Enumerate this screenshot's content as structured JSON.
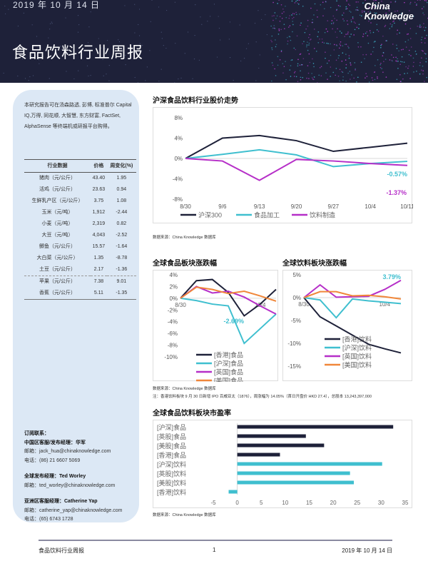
{
  "header": {
    "date": "2019 年 10 月 14 日",
    "title": "食品饮料行业周报",
    "logo_line1": "China",
    "logo_line2": "Knowledge"
  },
  "left": {
    "intro": "本研究报告可在汤森路透, 彭博, 标准普尔 Capital IQ,万得, 同花顺, 大智慧, 东方财富, FactSet, AlphaSense 等终端机或研报平台购得。",
    "table_headers": [
      "行业数据",
      "价格",
      "周变化(%)"
    ],
    "rows": [
      {
        "name": "猪肉（元/公斤）",
        "price": "43.40",
        "change": "1.95"
      },
      {
        "name": "活鸡（元/公斤）",
        "price": "23.63",
        "change": "0.94"
      },
      {
        "name": "生鲜乳产区（元/公斤）",
        "price": "3.75",
        "change": "1.08"
      },
      {
        "name": "玉米（元/吨）",
        "price": "1,912",
        "change": "-2.44"
      },
      {
        "name": "小麦（元/吨）",
        "price": "2,319",
        "change": "0.82"
      },
      {
        "name": "大豆（元/吨）",
        "price": "4,043",
        "change": "-2.52"
      },
      {
        "name": "鲫鱼（元/公斤）",
        "price": "15.57",
        "change": "-1.64"
      },
      {
        "name": "大白菜（元/公斤）",
        "price": "1.35",
        "change": "-8.78"
      },
      {
        "name": "土豆（元/公斤）",
        "price": "2.17",
        "change": "-1.36"
      },
      {
        "name": "苹果（元/公斤）",
        "price": "7.38",
        "change": "9.01"
      },
      {
        "name": "香蕉（元/公斤）",
        "price": "5.11",
        "change": "-1.35"
      }
    ],
    "contacts": {
      "heading": "订阅联系：",
      "china_mgr": "中国区客服/发布经理：华军",
      "china_email": "邮箱：jack_hua@chinaknowledge.com",
      "china_phone": "电话：(86) 21 6607 5069",
      "global_mgr": "全球发布经理：Ted Worley",
      "global_email": "邮箱：ted_worley@chinaknowledge.com",
      "asia_mgr": "亚洲区客服经理：Catherine Yap",
      "asia_email": "邮箱：catherine_yap@chinaknowledge.com",
      "asia_phone": "电话：(65) 6743 1728"
    }
  },
  "source": "数据来源：China Knowledge 数据库",
  "note": "注：香港饮料板块 9 月 30 日新增 IPO 百威亚太（1876），周涨幅为 14.05%（首日开盘价 HKD 27.4），总股本 13,243,397,000",
  "footer": {
    "left": "食品饮料行业周报",
    "page": "1",
    "right": "2019 年 10 月 14 日"
  },
  "chart_data": [
    {
      "type": "line",
      "title": "沪深食品饮料行业股价走势",
      "categories": [
        "8/30",
        "9/6",
        "9/13",
        "9/20",
        "9/27",
        "10/4",
        "10/11"
      ],
      "ylim": [
        -8,
        8
      ],
      "yticks": [
        "8%",
        "4%",
        "0%",
        "-4%",
        "-8%"
      ],
      "ytick_values": [
        8,
        4,
        0,
        -4,
        -8
      ],
      "series": [
        {
          "name": "沪深300",
          "color": "#1e2139",
          "values": [
            0,
            4.0,
            4.5,
            3.5,
            1.4,
            2.2,
            3.0
          ]
        },
        {
          "name": "食品加工",
          "color": "#3fbfcf",
          "values": [
            0,
            0.8,
            1.7,
            0.7,
            -1.6,
            -1.0,
            -0.57
          ]
        },
        {
          "name": "饮料制造",
          "color": "#b62fc8",
          "values": [
            0,
            -0.5,
            -4.3,
            -0.2,
            -0.5,
            -1.0,
            -1.37
          ]
        }
      ],
      "annotations": [
        "-0.57%",
        "-1.37%"
      ],
      "legend": "bottom"
    },
    {
      "type": "line",
      "title": "全球食品板块涨跌幅",
      "xlabels": [
        "8/30",
        "10/4"
      ],
      "ylim": [
        -10,
        4
      ],
      "yticks": [
        "4%",
        "2%",
        "0%",
        "-2%",
        "-4%",
        "-6%",
        "-8%",
        "-10%"
      ],
      "ytick_values": [
        4,
        2,
        0,
        -2,
        -4,
        -6,
        -8,
        -10
      ],
      "series": [
        {
          "name": "[香港]食品",
          "color": "#1e2139",
          "values": [
            0,
            3.0,
            3.2,
            1.0,
            -3.0,
            -1.0,
            1.5
          ]
        },
        {
          "name": "[沪深]食品",
          "color": "#3fbfcf",
          "values": [
            0,
            -0.4,
            -1.0,
            -1.3,
            -7.7,
            -5.2,
            -2.69
          ]
        },
        {
          "name": "[英国]食品",
          "color": "#b62fc8",
          "values": [
            0,
            2.0,
            0.9,
            1.2,
            0.2,
            -1.3,
            -2.7
          ]
        },
        {
          "name": "[美国]食品",
          "color": "#f0873a",
          "values": [
            0,
            1.9,
            1.5,
            0.8,
            1.2,
            0.4,
            -0.5
          ]
        }
      ],
      "annotations": [
        "-2.69%"
      ],
      "legend": "bottom-center"
    },
    {
      "type": "line",
      "title": "全球饮料板块涨跌幅",
      "xlabels": [
        "8/30",
        "10/4"
      ],
      "ylim": [
        -15,
        5
      ],
      "yticks": [
        "5%",
        "0%",
        "-5%",
        "-10%",
        "-15%"
      ],
      "ytick_values": [
        5,
        0,
        -5,
        -10,
        -15
      ],
      "series": [
        {
          "name": "[香港]饮料",
          "color": "#1e2139",
          "values": [
            0,
            -4.2,
            -6.2,
            -8.2,
            -10.2,
            -11.2,
            -12.1
          ]
        },
        {
          "name": "[沪深]饮料",
          "color": "#3fbfcf",
          "values": [
            0,
            -0.5,
            -4.4,
            -0.3,
            -0.7,
            -1.0,
            -1.3
          ]
        },
        {
          "name": "[英国]饮料",
          "color": "#b62fc8",
          "values": [
            0,
            2.8,
            0.1,
            0.2,
            0.3,
            1.8,
            3.79
          ]
        },
        {
          "name": "[美国]饮料",
          "color": "#f0873a",
          "values": [
            0,
            1.3,
            1.3,
            0.4,
            0.5,
            0.2,
            -0.3
          ]
        }
      ],
      "annotations": [
        "3.79%"
      ],
      "legend": "bottom-center"
    },
    {
      "type": "bar",
      "orientation": "horizontal",
      "title": "全球食品饮料板块市盈率",
      "categories": [
        "[沪深]食品",
        "[英股]食品",
        "[美股]食品",
        "[香港]食品",
        "[沪深]饮料",
        "[英股]饮料",
        "[美股]饮料",
        "[香港]饮料"
      ],
      "values": [
        32.5,
        14.3,
        18.1,
        8.9,
        30.2,
        23.5,
        24.3,
        -1.8
      ],
      "colors": [
        "#1e2139",
        "#1e2139",
        "#1e2139",
        "#1e2139",
        "#3fbfcf",
        "#3fbfcf",
        "#3fbfcf",
        "#3fbfcf"
      ],
      "xlim": [
        -5,
        35
      ],
      "xticks": [
        "-5",
        "0",
        "5",
        "10",
        "15",
        "20",
        "25",
        "30",
        "35"
      ]
    }
  ]
}
